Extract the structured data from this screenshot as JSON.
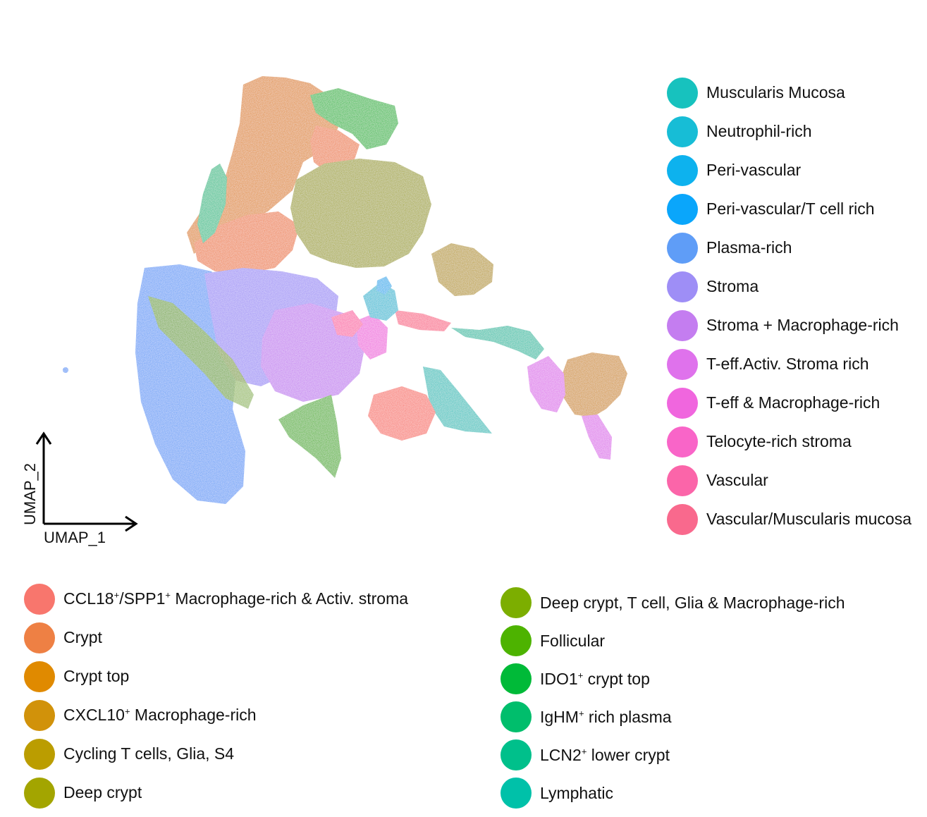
{
  "chart_data": {
    "type": "scatter",
    "title": "",
    "xlabel": "UMAP_1",
    "ylabel": "UMAP_2",
    "series": [
      {
        "name": "Muscularis Mucosa",
        "color": "#17C2BE"
      },
      {
        "name": "Neutrophil-rich",
        "color": "#17BDD6"
      },
      {
        "name": "Peri-vascular",
        "color": "#0DB2EE"
      },
      {
        "name": "Peri-vascular/T cell rich",
        "color": "#0AA6FB"
      },
      {
        "name": "Plasma-rich",
        "color": "#5F9DF7"
      },
      {
        "name": "Stroma",
        "color": "#9E8EF6"
      },
      {
        "name": "Stroma + Macrophage-rich",
        "color": "#C47DF0"
      },
      {
        "name": "T-eff.Activ. Stroma rich",
        "color": "#DF72EC"
      },
      {
        "name": "T-eff & Macrophage-rich",
        "color": "#F066DE"
      },
      {
        "name": "Telocyte-rich stroma",
        "color": "#F965C8"
      },
      {
        "name": "Vascular",
        "color": "#FB65A9"
      },
      {
        "name": "Vascular/Muscularis mucosa",
        "color": "#F9698D"
      },
      {
        "name": "CCL18+/SPP1+ Macrophage-rich & Activ. stroma",
        "color": "#F8766D"
      },
      {
        "name": "Crypt",
        "color": "#EE8044"
      },
      {
        "name": "Crypt top",
        "color": "#E08A00"
      },
      {
        "name": "CXCL10+ Macrophage-rich",
        "color": "#D1920A"
      },
      {
        "name": "Cycling T cells, Glia, S4",
        "color": "#BB9D00"
      },
      {
        "name": "Deep crypt",
        "color": "#A3A500"
      },
      {
        "name": "Deep crypt, T cell, Glia & Macrophage-rich",
        "color": "#7CAE00"
      },
      {
        "name": "Follicular",
        "color": "#4DB300"
      },
      {
        "name": "IDO1+ crypt top",
        "color": "#00BA38"
      },
      {
        "name": "IgHM+ rich plasma",
        "color": "#00BE6C"
      },
      {
        "name": "LCN2+ lower crypt",
        "color": "#00C08B"
      },
      {
        "name": "Lymphatic",
        "color": "#00C1A9"
      }
    ]
  },
  "legend": {
    "right": [
      {
        "pre": "Muscularis Mucosa",
        "color": "#17C2BE"
      },
      {
        "pre": "Neutrophil-rich",
        "color": "#17BDD6"
      },
      {
        "pre": "Peri-vascular",
        "color": "#0DB2EE"
      },
      {
        "pre": "Peri-vascular/T cell rich",
        "color": "#0AA6FB"
      },
      {
        "pre": "Plasma-rich",
        "color": "#5F9DF7"
      },
      {
        "pre": "Stroma",
        "color": "#9E8EF6"
      },
      {
        "pre": "Stroma + Macrophage-rich",
        "color": "#C47DF0"
      },
      {
        "pre": "T-eff.Activ. Stroma rich",
        "color": "#DF72EC"
      },
      {
        "pre": "T-eff & Macrophage-rich",
        "color": "#F066DE"
      },
      {
        "pre": "Telocyte-rich stroma",
        "color": "#F965C8"
      },
      {
        "pre": "Vascular",
        "color": "#FB65A9"
      },
      {
        "pre": "Vascular/Muscularis mucosa",
        "color": "#F9698D"
      }
    ],
    "bottom_left": [
      {
        "pre": "CCL18",
        "sup": "+",
        "mid": "/SPP1",
        "sup2": "+",
        "post": " Macrophage-rich & Activ. stroma",
        "color": "#F8766D"
      },
      {
        "pre": "Crypt",
        "color": "#EE8044"
      },
      {
        "pre": "Crypt top",
        "color": "#E08A00"
      },
      {
        "pre": "CXCL10",
        "sup": "+",
        "post": " Macrophage-rich",
        "color": "#D1920A"
      },
      {
        "pre": "Cycling T cells, Glia, S4",
        "color": "#BB9D00"
      },
      {
        "pre": "Deep crypt",
        "color": "#A3A500"
      }
    ],
    "bottom_mid": [
      {
        "pre": "Deep crypt, T cell, Glia & Macrophage-rich",
        "color": "#7CAE00"
      },
      {
        "pre": "Follicular",
        "color": "#4DB300"
      },
      {
        "pre": "IDO1",
        "sup": "+",
        "post": " crypt top",
        "color": "#00BA38"
      },
      {
        "pre": "IgHM",
        "sup": "+",
        "post": " rich plasma",
        "color": "#00BE6C"
      },
      {
        "pre": "LCN2",
        "sup": "+",
        "post": " lower crypt",
        "color": "#00C08B"
      },
      {
        "pre": "Lymphatic",
        "color": "#00C1A9"
      }
    ]
  }
}
